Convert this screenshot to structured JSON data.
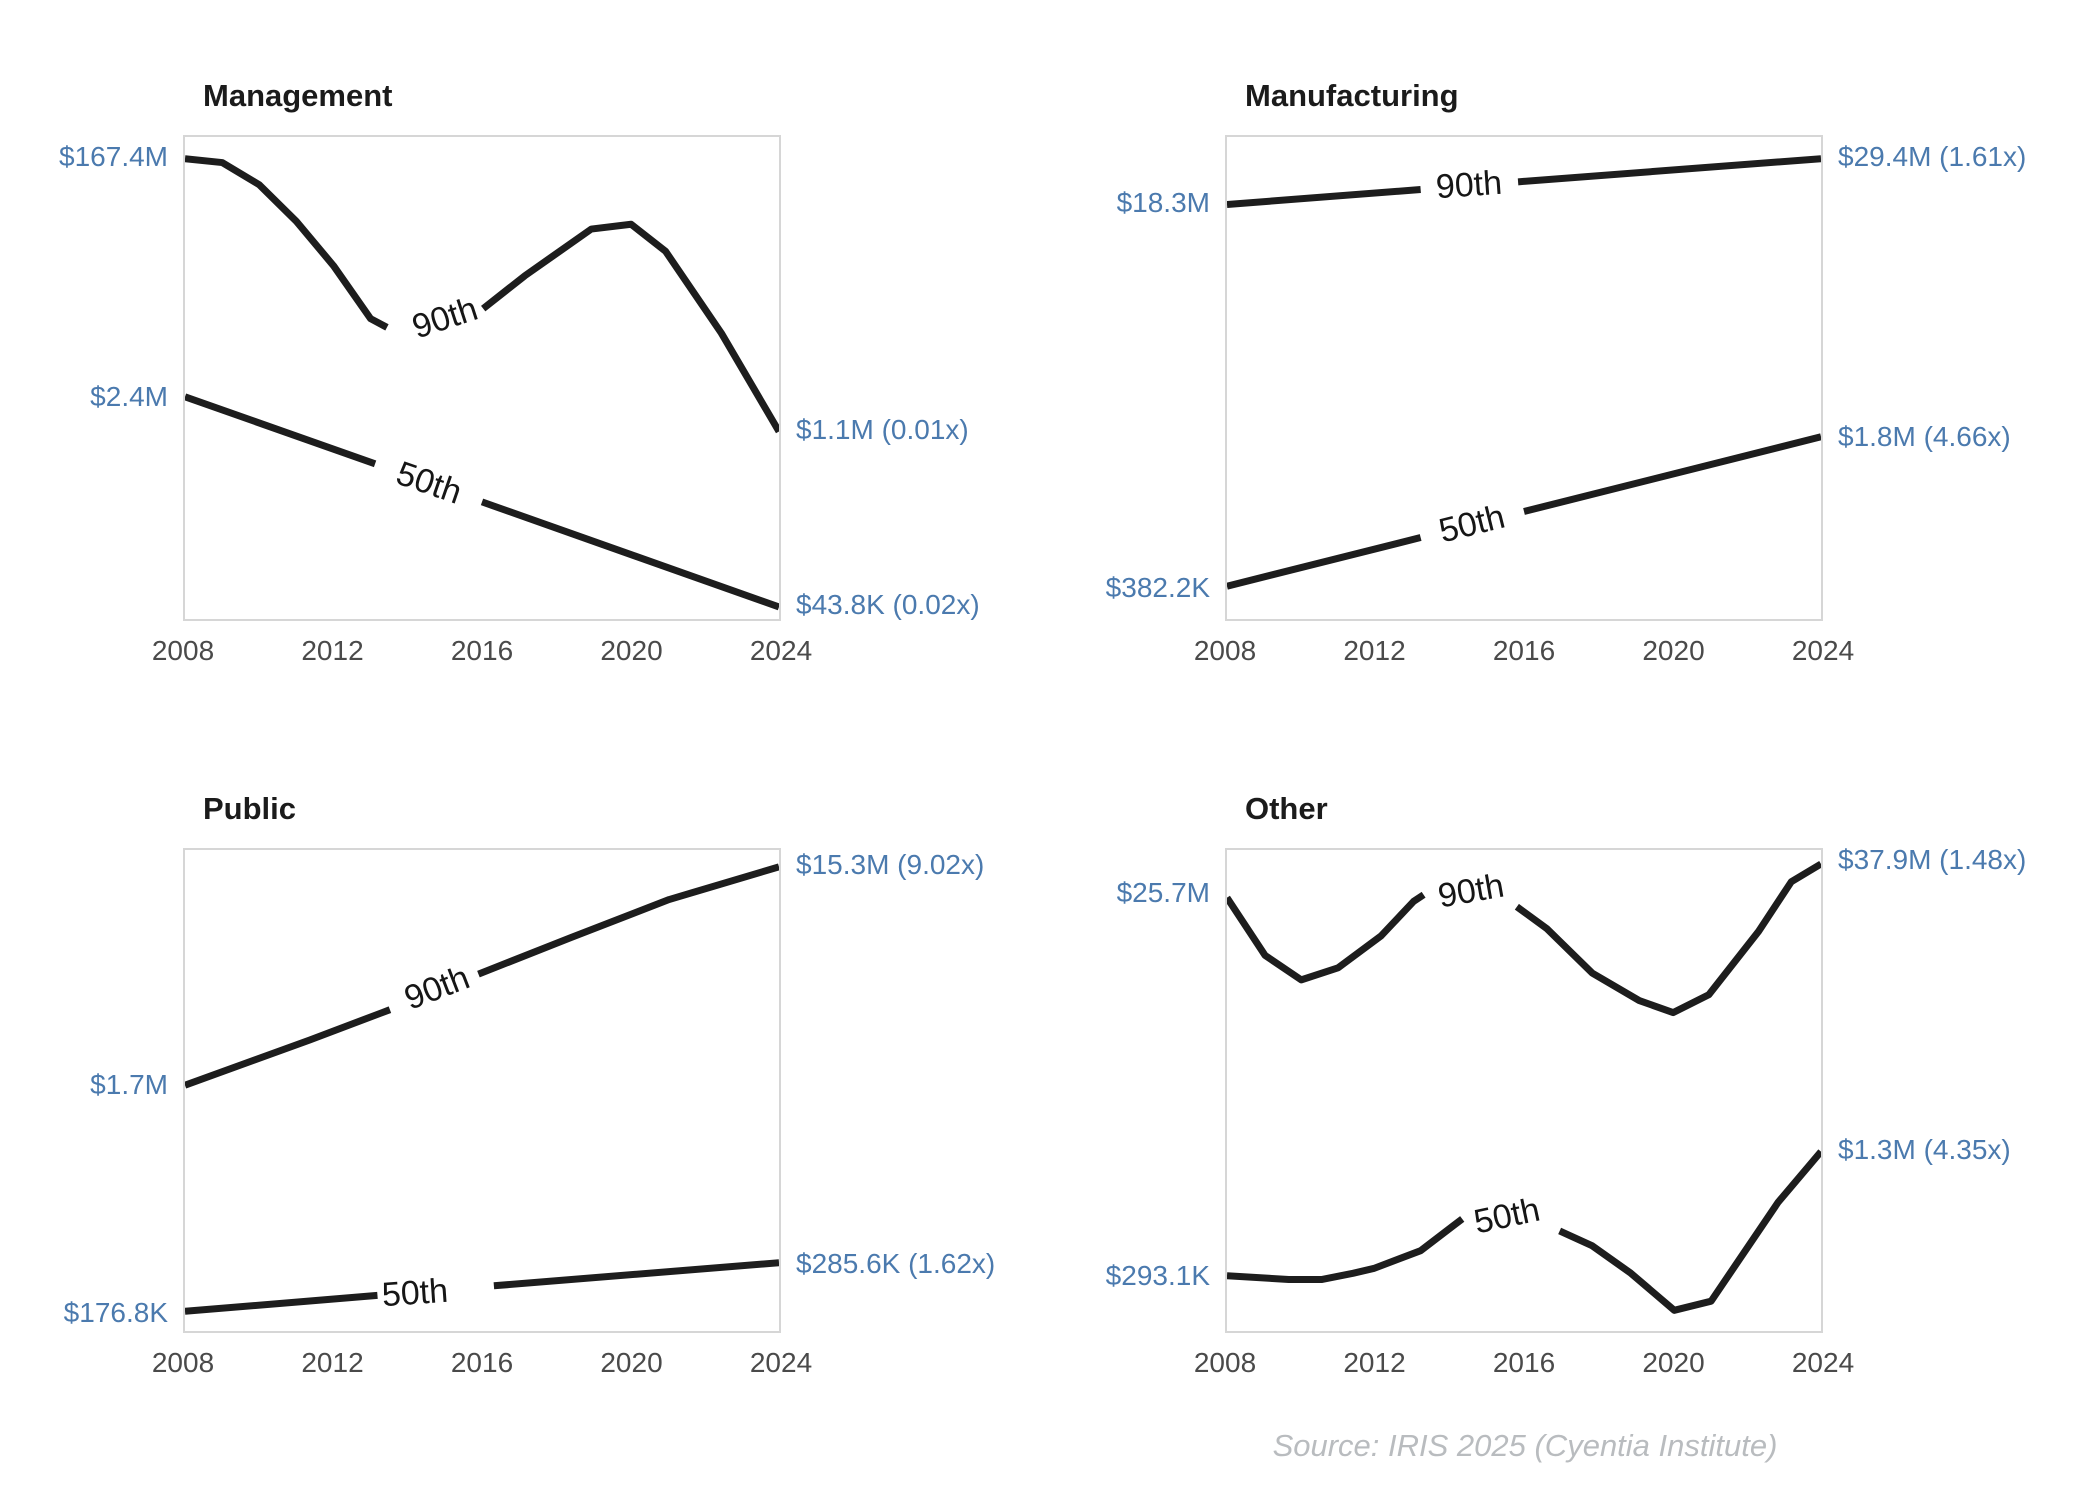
{
  "colors": {
    "line": "#1d1d1d",
    "value_label": "#4b7aae",
    "axis_label": "#4a4a4a",
    "title": "#1b1b1b",
    "panel_border": "#d6d6d6",
    "percentile_label": "#161616",
    "source": "#b9bcbf",
    "background": "#ffffff"
  },
  "x_axis": {
    "ticks": [
      "2008",
      "2012",
      "2016",
      "2020",
      "2024"
    ],
    "positions": [
      0,
      0.25,
      0.5,
      0.75,
      1
    ]
  },
  "source_note": "Source: IRIS 2025 (Cyentia Institute)",
  "chart_data": [
    {
      "title": "Management",
      "type": "line",
      "x_range": [
        2008,
        2024
      ],
      "series": [
        {
          "name": "90th",
          "start": {
            "label": "$167.4M",
            "value_usd": 167400000,
            "yf": 0.045
          },
          "end": {
            "label": "$1.1M (0.01x)",
            "value_usd": 1100000,
            "multiple": "0.01x",
            "yf": 0.607
          },
          "path_label": {
            "text": "90th",
            "xf": 0.438,
            "yf": 0.375,
            "rotate": -18
          },
          "segments": [
            [
              [
                0,
                0.045
              ],
              [
                0.0625,
                0.053
              ],
              [
                0.125,
                0.099
              ],
              [
                0.1875,
                0.175
              ],
              [
                0.25,
                0.267
              ],
              [
                0.3125,
                0.377
              ],
              [
                0.34,
                0.395
              ]
            ],
            [
              [
                0.502,
                0.356
              ],
              [
                0.572,
                0.288
              ],
              [
                0.684,
                0.191
              ],
              [
                0.751,
                0.181
              ],
              [
                0.809,
                0.237
              ],
              [
                0.903,
                0.407
              ],
              [
                1,
                0.611
              ]
            ]
          ]
        },
        {
          "name": "50th",
          "start": {
            "label": "$2.4M",
            "value_usd": 2400000,
            "yf": 0.539
          },
          "end": {
            "label": "$43.8K (0.02x)",
            "value_usd": 43800,
            "multiple": "0.02x",
            "yf": 0.967
          },
          "path_label": {
            "text": "50th",
            "xf": 0.41,
            "yf": 0.718,
            "rotate": 19
          },
          "segments": [
            [
              [
                0,
                0.539
              ],
              [
                0.32,
                0.678
              ]
            ],
            [
              [
                0.5,
                0.757
              ],
              [
                1,
                0.975
              ]
            ]
          ]
        }
      ]
    },
    {
      "title": "Manufacturing",
      "type": "line",
      "x_range": [
        2008,
        2024
      ],
      "series": [
        {
          "name": "90th",
          "start": {
            "label": "$18.3M",
            "value_usd": 18300000,
            "yf": 0.14
          },
          "end": {
            "label": "$29.4M (1.61x)",
            "value_usd": 29400000,
            "multiple": "1.61x",
            "yf": 0.045
          },
          "path_label": {
            "text": "90th",
            "xf": 0.408,
            "yf": 0.1,
            "rotate": -4
          },
          "segments": [
            [
              [
                0,
                0.14
              ],
              [
                0.326,
                0.109
              ]
            ],
            [
              [
                0.49,
                0.093
              ],
              [
                1,
                0.045
              ]
            ]
          ]
        },
        {
          "name": "50th",
          "start": {
            "label": "$382.2K",
            "value_usd": 382200,
            "yf": 0.932
          },
          "end": {
            "label": "$1.8M (4.66x)",
            "value_usd": 1800000,
            "multiple": "4.66x",
            "yf": 0.622
          },
          "path_label": {
            "text": "50th",
            "xf": 0.413,
            "yf": 0.803,
            "rotate": -14
          },
          "segments": [
            [
              [
                0,
                0.932
              ],
              [
                0.326,
                0.831
              ]
            ],
            [
              [
                0.5,
                0.777
              ],
              [
                1,
                0.622
              ]
            ]
          ]
        }
      ]
    },
    {
      "title": "Public",
      "type": "line",
      "x_range": [
        2008,
        2024
      ],
      "series": [
        {
          "name": "90th",
          "start": {
            "label": "$1.7M",
            "value_usd": 1700000,
            "yf": 0.489
          },
          "end": {
            "label": "$15.3M (9.02x)",
            "value_usd": 15300000,
            "multiple": "9.02x",
            "yf": 0.035
          },
          "path_label": {
            "text": "90th",
            "xf": 0.425,
            "yf": 0.287,
            "rotate": -21
          },
          "segments": [
            [
              [
                0,
                0.489
              ],
              [
                0.21,
                0.395
              ],
              [
                0.345,
                0.332
              ]
            ],
            [
              [
                0.494,
                0.258
              ],
              [
                0.65,
                0.182
              ],
              [
                0.815,
                0.103
              ],
              [
                1,
                0.035
              ]
            ]
          ]
        },
        {
          "name": "50th",
          "start": {
            "label": "$176.8K",
            "value_usd": 176800,
            "yf": 0.959
          },
          "end": {
            "label": "$285.6K (1.62x)",
            "value_usd": 285600,
            "multiple": "1.62x",
            "yf": 0.858
          },
          "path_label": {
            "text": "50th",
            "xf": 0.388,
            "yf": 0.921,
            "rotate": -4
          },
          "segments": [
            [
              [
                0,
                0.959
              ],
              [
                0.324,
                0.926
              ]
            ],
            [
              [
                0.52,
                0.906
              ],
              [
                1,
                0.858
              ]
            ]
          ]
        }
      ]
    },
    {
      "title": "Other",
      "type": "line",
      "x_range": [
        2008,
        2024
      ],
      "series": [
        {
          "name": "90th",
          "start": {
            "label": "$25.7M",
            "value_usd": 25700000,
            "yf": 0.093
          },
          "end": {
            "label": "$37.9M (1.48x)",
            "value_usd": 37900000,
            "multiple": "1.48x",
            "yf": 0.025
          },
          "path_label": {
            "text": "90th",
            "xf": 0.41,
            "yf": 0.085,
            "rotate": -10
          },
          "segments": [
            [
              [
                0,
                0.099
              ],
              [
                0.064,
                0.219
              ],
              [
                0.125,
                0.27
              ],
              [
                0.187,
                0.245
              ],
              [
                0.259,
                0.179
              ],
              [
                0.314,
                0.107
              ],
              [
                0.331,
                0.093
              ]
            ],
            [
              [
                0.488,
                0.118
              ],
              [
                0.538,
                0.163
              ],
              [
                0.615,
                0.256
              ],
              [
                0.694,
                0.313
              ],
              [
                0.751,
                0.338
              ],
              [
                0.811,
                0.301
              ],
              [
                0.895,
                0.169
              ],
              [
                0.95,
                0.066
              ],
              [
                1,
                0.029
              ]
            ]
          ]
        },
        {
          "name": "50th",
          "start": {
            "label": "$293.1K",
            "value_usd": 293100,
            "yf": 0.883
          },
          "end": {
            "label": "$1.3M (4.35x)",
            "value_usd": 1300000,
            "multiple": "4.35x",
            "yf": 0.623
          },
          "path_label": {
            "text": "50th",
            "xf": 0.472,
            "yf": 0.76,
            "rotate": -12
          },
          "segments": [
            [
              [
                0,
                0.885
              ],
              [
                0.104,
                0.893
              ],
              [
                0.159,
                0.893
              ],
              [
                0.212,
                0.88
              ],
              [
                0.247,
                0.87
              ],
              [
                0.326,
                0.833
              ],
              [
                0.381,
                0.781
              ],
              [
                0.396,
                0.767
              ]
            ],
            [
              [
                0.56,
                0.792
              ],
              [
                0.615,
                0.823
              ],
              [
                0.68,
                0.88
              ],
              [
                0.753,
                0.957
              ],
              [
                0.815,
                0.938
              ],
              [
                0.928,
                0.732
              ],
              [
                1,
                0.627
              ]
            ]
          ]
        }
      ]
    }
  ]
}
